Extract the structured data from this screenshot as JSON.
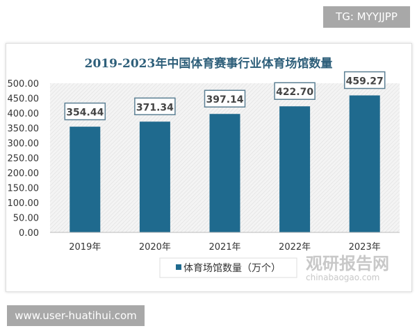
{
  "badge_top": "TG: MYYJJPP",
  "badge_bottom": "www.user-huatihui.com",
  "watermark": {
    "name": "观研报告网",
    "site": "chinabaogao.com"
  },
  "chart_data": {
    "type": "bar",
    "title": "2019-2023年中国体育赛事行业体育场馆数量",
    "categories": [
      "2019年",
      "2020年",
      "2021年",
      "2022年",
      "2023年"
    ],
    "series": [
      {
        "name": "体育场馆数量（万个）",
        "values": [
          354.44,
          371.34,
          397.14,
          422.7,
          459.27
        ],
        "color": "#1f6a8e"
      }
    ],
    "data_labels": [
      "354.44",
      "371.34",
      "397.14",
      "422.70",
      "459.27"
    ],
    "ylim": [
      0,
      500
    ],
    "yticks": [
      "0.00",
      "50.00",
      "100.00",
      "150.00",
      "200.00",
      "250.00",
      "300.00",
      "350.00",
      "400.00",
      "450.00",
      "500.00"
    ],
    "legend": "bottom",
    "grid": false,
    "title_color": "#2e5f7a"
  }
}
